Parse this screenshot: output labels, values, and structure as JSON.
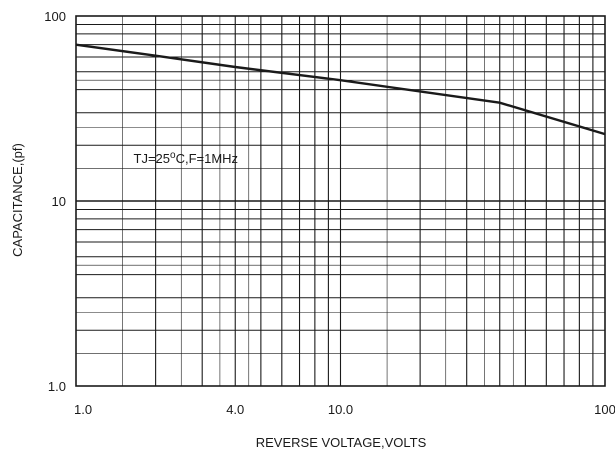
{
  "chart_data": {
    "type": "line",
    "title": "",
    "xlabel": "REVERSE VOLTAGE,VOLTS",
    "ylabel": "CAPACITANCE,(pf)",
    "xscale": "log",
    "yscale": "log",
    "xlim": [
      1.0,
      100
    ],
    "ylim": [
      1.0,
      100
    ],
    "grid": true,
    "legend": "none",
    "x_tick_labels": [
      {
        "value": 1.0,
        "label": "1.0"
      },
      {
        "value": 4.0,
        "label": "4.0"
      },
      {
        "value": 10.0,
        "label": "10.0"
      },
      {
        "value": 100,
        "label": "100"
      }
    ],
    "y_tick_labels": [
      {
        "value": 1.0,
        "label": "1.0"
      },
      {
        "value": 10,
        "label": "10"
      },
      {
        "value": 100,
        "label": "100"
      }
    ],
    "annotation": {
      "prefix": "TJ=25",
      "superscript": "o",
      "suffix": "C,F=1MHz",
      "x": 1.65,
      "y": 16
    },
    "series": [
      {
        "x": [
          1.0,
          2.0,
          4.0,
          10.0,
          40.0,
          100.0
        ],
        "y": [
          70,
          61,
          53,
          45,
          34,
          23
        ],
        "color": "#1a1a1a"
      }
    ]
  }
}
